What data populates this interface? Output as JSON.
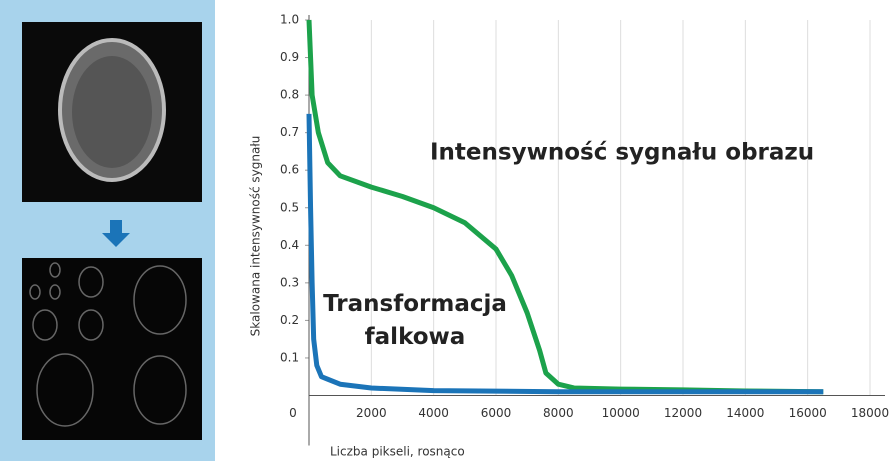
{
  "chart_data": {
    "type": "line",
    "xlabel": "Liczba pikseli, rosnąco",
    "ylabel": "Skalowana intensywność sygnału",
    "xlim": [
      0,
      18500
    ],
    "ylim": [
      0,
      1.0
    ],
    "xticks": [
      0,
      2000,
      4000,
      6000,
      8000,
      10000,
      12000,
      14000,
      16000,
      18000
    ],
    "yticks": [
      0.1,
      0.2,
      0.3,
      0.4,
      0.5,
      0.6,
      0.7,
      0.8,
      0.9,
      {
        "value": 1,
        "label": "1.0"
      }
    ],
    "grid": true,
    "series": [
      {
        "name": "Intensywność sygnału obrazu",
        "color": "#1ca24b",
        "x": [
          0,
          100,
          300,
          600,
          1000,
          2000,
          3000,
          4000,
          5000,
          6000,
          6500,
          7000,
          7400,
          7600,
          8000,
          8500,
          10000,
          12000,
          14000,
          16500
        ],
        "values": [
          1.0,
          0.8,
          0.7,
          0.62,
          0.585,
          0.555,
          0.53,
          0.5,
          0.46,
          0.39,
          0.32,
          0.22,
          0.12,
          0.06,
          0.03,
          0.02,
          0.017,
          0.015,
          0.012,
          0.01
        ]
      },
      {
        "name": "Transformacja falkowa",
        "color": "#1b74b8",
        "x": [
          0,
          50,
          100,
          150,
          250,
          400,
          1000,
          2000,
          4000,
          8000,
          12000,
          16500
        ],
        "values": [
          0.75,
          0.5,
          0.3,
          0.15,
          0.08,
          0.05,
          0.03,
          0.02,
          0.013,
          0.01,
          0.01,
          0.01
        ]
      }
    ]
  }
}
